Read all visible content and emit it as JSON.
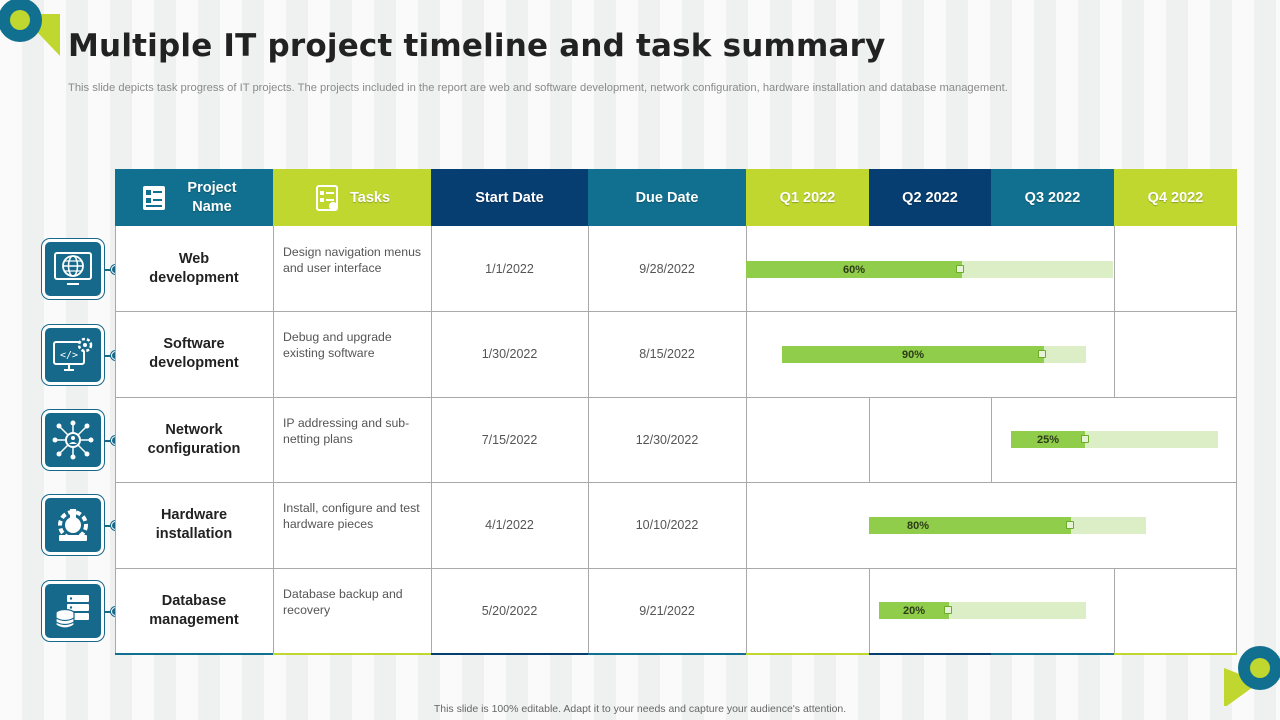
{
  "title": "Multiple IT project timeline and task summary",
  "subtitle": "This slide depicts task progress of IT projects. The projects included in the report are web and software development, network configuration, hardware installation and database management.",
  "footer": "This slide is 100% editable. Adapt it to your needs and capture your audience's attention.",
  "colors": {
    "teal": "#11708f",
    "lime": "#bfd72f",
    "navy": "#073e72",
    "bar_fill": "#8fcd4a",
    "bar_track": "#dbeec6"
  },
  "headers": {
    "project_name": "Project Name",
    "tasks": "Tasks",
    "start_date": "Start Date",
    "due_date": "Due Date",
    "q1": "Q1 2022",
    "q2": "Q2 2022",
    "q3": "Q3 2022",
    "q4": "Q4 2022"
  },
  "rows": [
    {
      "project": "Web development",
      "task": "Design navigation menus and user interface",
      "start": "1/1/2022",
      "due": "9/28/2022",
      "progress": "60%",
      "progress_value": 0.6,
      "icon": "globe-monitor-icon"
    },
    {
      "project": "Software development",
      "task": "Debug and upgrade existing software",
      "start": "1/30/2022",
      "due": "8/15/2022",
      "progress": "90%",
      "progress_value": 0.9,
      "icon": "code-gear-monitor-icon"
    },
    {
      "project": "Network configuration",
      "task": "IP addressing and sub-netting plans",
      "start": "7/15/2022",
      "due": "12/30/2022",
      "progress": "25%",
      "progress_value": 0.25,
      "icon": "network-hub-icon"
    },
    {
      "project": "Hardware installation",
      "task": "Install, configure and test hardware pieces",
      "start": "4/1/2022",
      "due": "10/10/2022",
      "progress": "80%",
      "progress_value": 0.8,
      "icon": "hardware-gear-icon"
    },
    {
      "project": "Database management",
      "task": "Database backup and recovery",
      "start": "5/20/2022",
      "due": "9/21/2022",
      "progress": "20%",
      "progress_value": 0.2,
      "icon": "database-server-icon"
    }
  ]
}
